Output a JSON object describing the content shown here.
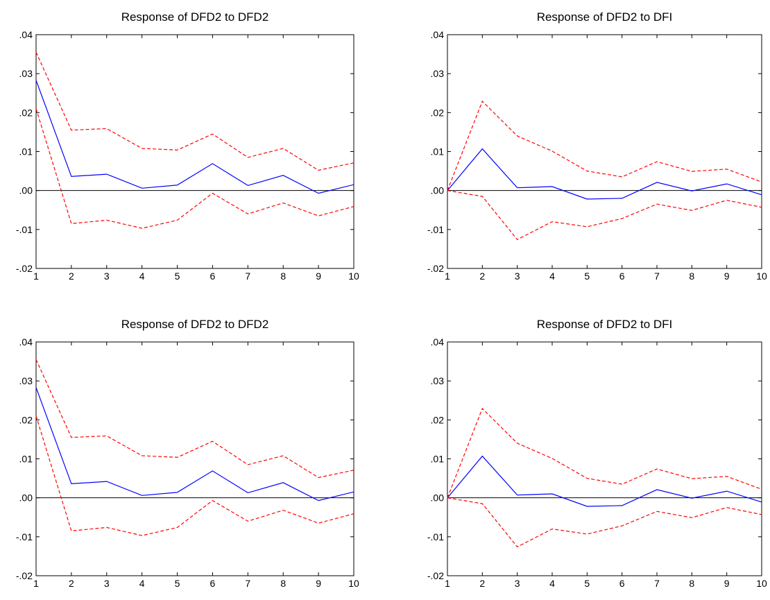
{
  "colors": {
    "response_line": "#0000ff",
    "confidence_band": "#ff0000",
    "zero_line": "#000000",
    "frame": "#000000",
    "background": "#ffffff"
  },
  "chart_data": [
    {
      "type": "line",
      "title": "Response of DFD2 to DFD2",
      "xlabel": "",
      "ylabel": "",
      "x": [
        1,
        2,
        3,
        4,
        5,
        6,
        7,
        8,
        9,
        10
      ],
      "x_tick_labels": [
        "1",
        "2",
        "3",
        "4",
        "5",
        "6",
        "7",
        "8",
        "9",
        "10"
      ],
      "ylim": [
        -0.02,
        0.04
      ],
      "y_ticks": [
        -0.02,
        -0.01,
        0.0,
        0.01,
        0.02,
        0.03,
        0.04
      ],
      "y_tick_labels": [
        "-.02",
        "-.01",
        ".00",
        ".01",
        ".02",
        ".03",
        ".04"
      ],
      "zero_line": true,
      "grid": false,
      "series": [
        {
          "role": "response",
          "style": "solid",
          "values": [
            0.0283,
            0.0036,
            0.0042,
            0.0006,
            0.0014,
            0.0069,
            0.0013,
            0.0039,
            -0.0007,
            0.0015
          ]
        },
        {
          "role": "upper",
          "style": "dashed",
          "values": [
            0.0355,
            0.0155,
            0.0159,
            0.0108,
            0.0104,
            0.0145,
            0.0085,
            0.0108,
            0.0052,
            0.0071
          ]
        },
        {
          "role": "lower",
          "style": "dashed",
          "values": [
            0.021,
            -0.0085,
            -0.0076,
            -0.0097,
            -0.0076,
            -0.0007,
            -0.006,
            -0.0032,
            -0.0065,
            -0.0041
          ]
        }
      ]
    },
    {
      "type": "line",
      "title": "Response of DFD2 to DFI",
      "xlabel": "",
      "ylabel": "",
      "x": [
        1,
        2,
        3,
        4,
        5,
        6,
        7,
        8,
        9,
        10
      ],
      "x_tick_labels": [
        "1",
        "2",
        "3",
        "4",
        "5",
        "6",
        "7",
        "8",
        "9",
        "10"
      ],
      "ylim": [
        -0.02,
        0.04
      ],
      "y_ticks": [
        -0.02,
        -0.01,
        0.0,
        0.01,
        0.02,
        0.03,
        0.04
      ],
      "y_tick_labels": [
        "-.02",
        "-.01",
        ".00",
        ".01",
        ".02",
        ".03",
        ".04"
      ],
      "zero_line": true,
      "grid": false,
      "series": [
        {
          "role": "response",
          "style": "solid",
          "values": [
            0.0,
            0.0107,
            0.0007,
            0.001,
            -0.0022,
            -0.002,
            0.0021,
            -0.0001,
            0.0017,
            -0.0011
          ]
        },
        {
          "role": "upper",
          "style": "dashed",
          "values": [
            0.0,
            0.0229,
            0.014,
            0.0101,
            0.005,
            0.0035,
            0.0074,
            0.0049,
            0.0055,
            0.0022
          ]
        },
        {
          "role": "lower",
          "style": "dashed",
          "values": [
            0.0,
            -0.0015,
            -0.0126,
            -0.008,
            -0.0093,
            -0.0072,
            -0.0035,
            -0.0051,
            -0.0025,
            -0.0043
          ]
        }
      ]
    },
    {
      "type": "line",
      "title": "Response of DFD2 to DFD2",
      "xlabel": "",
      "ylabel": "",
      "x": [
        1,
        2,
        3,
        4,
        5,
        6,
        7,
        8,
        9,
        10
      ],
      "x_tick_labels": [
        "1",
        "2",
        "3",
        "4",
        "5",
        "6",
        "7",
        "8",
        "9",
        "10"
      ],
      "ylim": [
        -0.02,
        0.04
      ],
      "y_ticks": [
        -0.02,
        -0.01,
        0.0,
        0.01,
        0.02,
        0.03,
        0.04
      ],
      "y_tick_labels": [
        "-.02",
        "-.01",
        ".00",
        ".01",
        ".02",
        ".03",
        ".04"
      ],
      "zero_line": true,
      "grid": false,
      "series": [
        {
          "role": "response",
          "style": "solid",
          "values": [
            0.0283,
            0.0036,
            0.0042,
            0.0006,
            0.0014,
            0.0069,
            0.0013,
            0.0039,
            -0.0007,
            0.0015
          ]
        },
        {
          "role": "upper",
          "style": "dashed",
          "values": [
            0.0355,
            0.0155,
            0.0159,
            0.0108,
            0.0104,
            0.0145,
            0.0085,
            0.0108,
            0.0052,
            0.0071
          ]
        },
        {
          "role": "lower",
          "style": "dashed",
          "values": [
            0.021,
            -0.0085,
            -0.0076,
            -0.0097,
            -0.0076,
            -0.0007,
            -0.006,
            -0.0032,
            -0.0065,
            -0.0041
          ]
        }
      ]
    },
    {
      "type": "line",
      "title": "Response of DFD2 to DFI",
      "xlabel": "",
      "ylabel": "",
      "x": [
        1,
        2,
        3,
        4,
        5,
        6,
        7,
        8,
        9,
        10
      ],
      "x_tick_labels": [
        "1",
        "2",
        "3",
        "4",
        "5",
        "6",
        "7",
        "8",
        "9",
        "10"
      ],
      "ylim": [
        -0.02,
        0.04
      ],
      "y_ticks": [
        -0.02,
        -0.01,
        0.0,
        0.01,
        0.02,
        0.03,
        0.04
      ],
      "y_tick_labels": [
        "-.02",
        "-.01",
        ".00",
        ".01",
        ".02",
        ".03",
        ".04"
      ],
      "zero_line": true,
      "grid": false,
      "series": [
        {
          "role": "response",
          "style": "solid",
          "values": [
            0.0,
            0.0107,
            0.0007,
            0.001,
            -0.0022,
            -0.002,
            0.0021,
            -0.0001,
            0.0017,
            -0.0011
          ]
        },
        {
          "role": "upper",
          "style": "dashed",
          "values": [
            0.0,
            0.0229,
            0.014,
            0.0101,
            0.005,
            0.0035,
            0.0074,
            0.0049,
            0.0055,
            0.0022
          ]
        },
        {
          "role": "lower",
          "style": "dashed",
          "values": [
            0.0,
            -0.0015,
            -0.0126,
            -0.008,
            -0.0093,
            -0.0072,
            -0.0035,
            -0.0051,
            -0.0025,
            -0.0043
          ]
        }
      ]
    }
  ]
}
